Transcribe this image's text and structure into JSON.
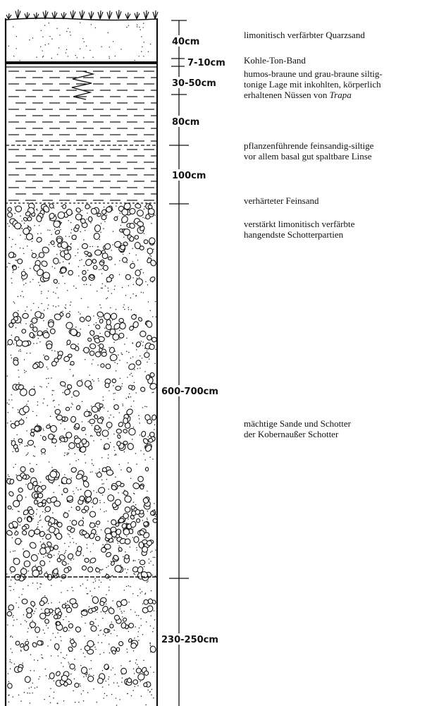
{
  "profile": {
    "layers": [
      {
        "id": "quarzsand",
        "thickness": "40cm",
        "description": [
          "limonitisch verfärbter Quarzsand"
        ]
      },
      {
        "id": "kohle-ton",
        "thickness": "7-10cm",
        "description": [
          "Kohle-Ton-Band"
        ]
      },
      {
        "id": "humos",
        "thickness": "30-50cm",
        "description": [
          "humos-braune und grau-braune siltig-",
          "tonige Lage mit inkohlten, körperlich",
          "erhaltenen Nüssen von "
        ],
        "italic_term": "Trapa"
      },
      {
        "id": "siltlage",
        "thickness": "80cm",
        "description": []
      },
      {
        "id": "linse",
        "thickness": "100cm",
        "description": [
          "pflanzenführende feinsandig-siltige",
          "vor allem basal gut spaltbare Linse"
        ]
      },
      {
        "id": "feinsand",
        "thickness": "",
        "description": [
          "verhärteter Feinsand"
        ]
      },
      {
        "id": "hangend",
        "thickness": "",
        "description": [
          "verstärkt limonitisch verfärbte",
          "hangendste Schotterpartien"
        ]
      },
      {
        "id": "schotter",
        "thickness": "600-700cm",
        "description": [
          "mächtige Sande und Schotter",
          "der Kobernaußer Schotter"
        ]
      },
      {
        "id": "basis",
        "thickness": "230-250cm",
        "description": []
      }
    ]
  }
}
